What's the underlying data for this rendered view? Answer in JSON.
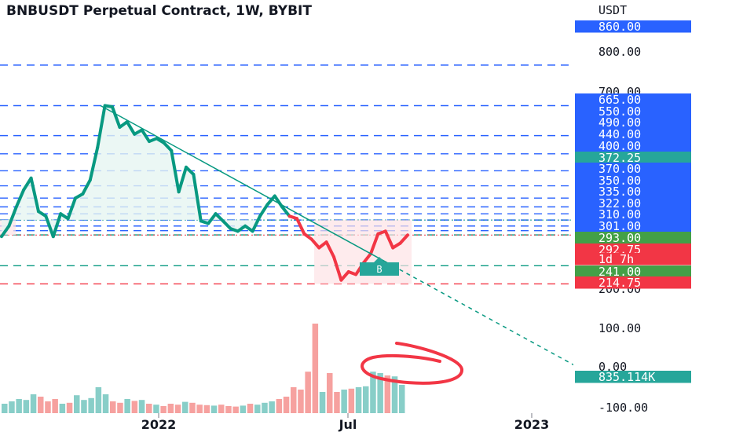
{
  "title": "BNBUSDT Perpetual Contract, 1W, BYBIT",
  "colors": {
    "up": "#089981",
    "down": "#f23645",
    "blue": "#2962ff",
    "volume_up": "#26a69a",
    "volume_down": "#ef5350"
  },
  "chart_data": {
    "type": "line",
    "title": "BNBUSDT Perpetual Contract, 1W, BYBIT",
    "currency_label": "USDT",
    "price_axis_ticks": [
      "860.00",
      "800.00",
      "700.00",
      "200.00",
      "100.00",
      "0.00",
      "-100.00"
    ],
    "x_tick_labels": [
      "2022",
      "Jul",
      "2023"
    ],
    "price_scale": "log",
    "series": [
      {
        "values": [
          290,
          310,
          350,
          390,
          420,
          340,
          330,
          290,
          335,
          325,
          370,
          380,
          415,
          510,
          665,
          660,
          580,
          600,
          555,
          570,
          530,
          540,
          525,
          500,
          385,
          450,
          430,
          320,
          315,
          335,
          320,
          305,
          300,
          310,
          300,
          330,
          355,
          375,
          350,
          330,
          325,
          295,
          285,
          270,
          280,
          255,
          220,
          232,
          228,
          245,
          260,
          295,
          300,
          270,
          278,
          292.75
        ]
      }
    ],
    "horizontal_levels": {
      "blue": [
        860,
        665,
        550,
        490,
        440,
        400,
        370,
        350,
        335,
        322,
        310,
        301
      ],
      "green": [
        293,
        241
      ],
      "red": [
        214.75
      ],
      "dotted_red": [
        292.75
      ],
      "dotted_green": [
        322
      ]
    },
    "price_tags": [
      {
        "label": "860.00",
        "color": "blue"
      },
      {
        "label": "665.00",
        "color": "blue"
      },
      {
        "label": "550.00",
        "color": "blue"
      },
      {
        "label": "490.00",
        "color": "blue"
      },
      {
        "label": "440.00",
        "color": "blue"
      },
      {
        "label": "400.00",
        "color": "blue"
      },
      {
        "label": "372.25",
        "color": "teal"
      },
      {
        "label": "370.00",
        "color": "blue"
      },
      {
        "label": "350.00",
        "color": "blue"
      },
      {
        "label": "335.00",
        "color": "blue"
      },
      {
        "label": "322.00",
        "color": "blue"
      },
      {
        "label": "310.00",
        "color": "blue"
      },
      {
        "label": "301.00",
        "color": "blue"
      },
      {
        "label": "293.00",
        "color": "green"
      },
      {
        "label": "292.75",
        "color": "red"
      },
      {
        "label": "1d 7h",
        "color": "red"
      },
      {
        "label": "241.00",
        "color": "green"
      },
      {
        "label": "214.75",
        "color": "red"
      },
      {
        "label": "835.114K",
        "color": "teal"
      }
    ],
    "buy_label": "B",
    "volume": [
      20,
      25,
      30,
      28,
      40,
      35,
      25,
      30,
      20,
      22,
      38,
      28,
      32,
      55,
      40,
      25,
      22,
      30,
      26,
      28,
      20,
      18,
      15,
      20,
      18,
      24,
      22,
      18,
      17,
      16,
      18,
      15,
      14,
      16,
      20,
      18,
      22,
      25,
      30,
      35,
      55,
      50,
      88,
      190,
      45,
      85,
      45,
      50,
      52,
      55,
      57,
      88,
      85,
      80,
      78,
      60
    ]
  }
}
